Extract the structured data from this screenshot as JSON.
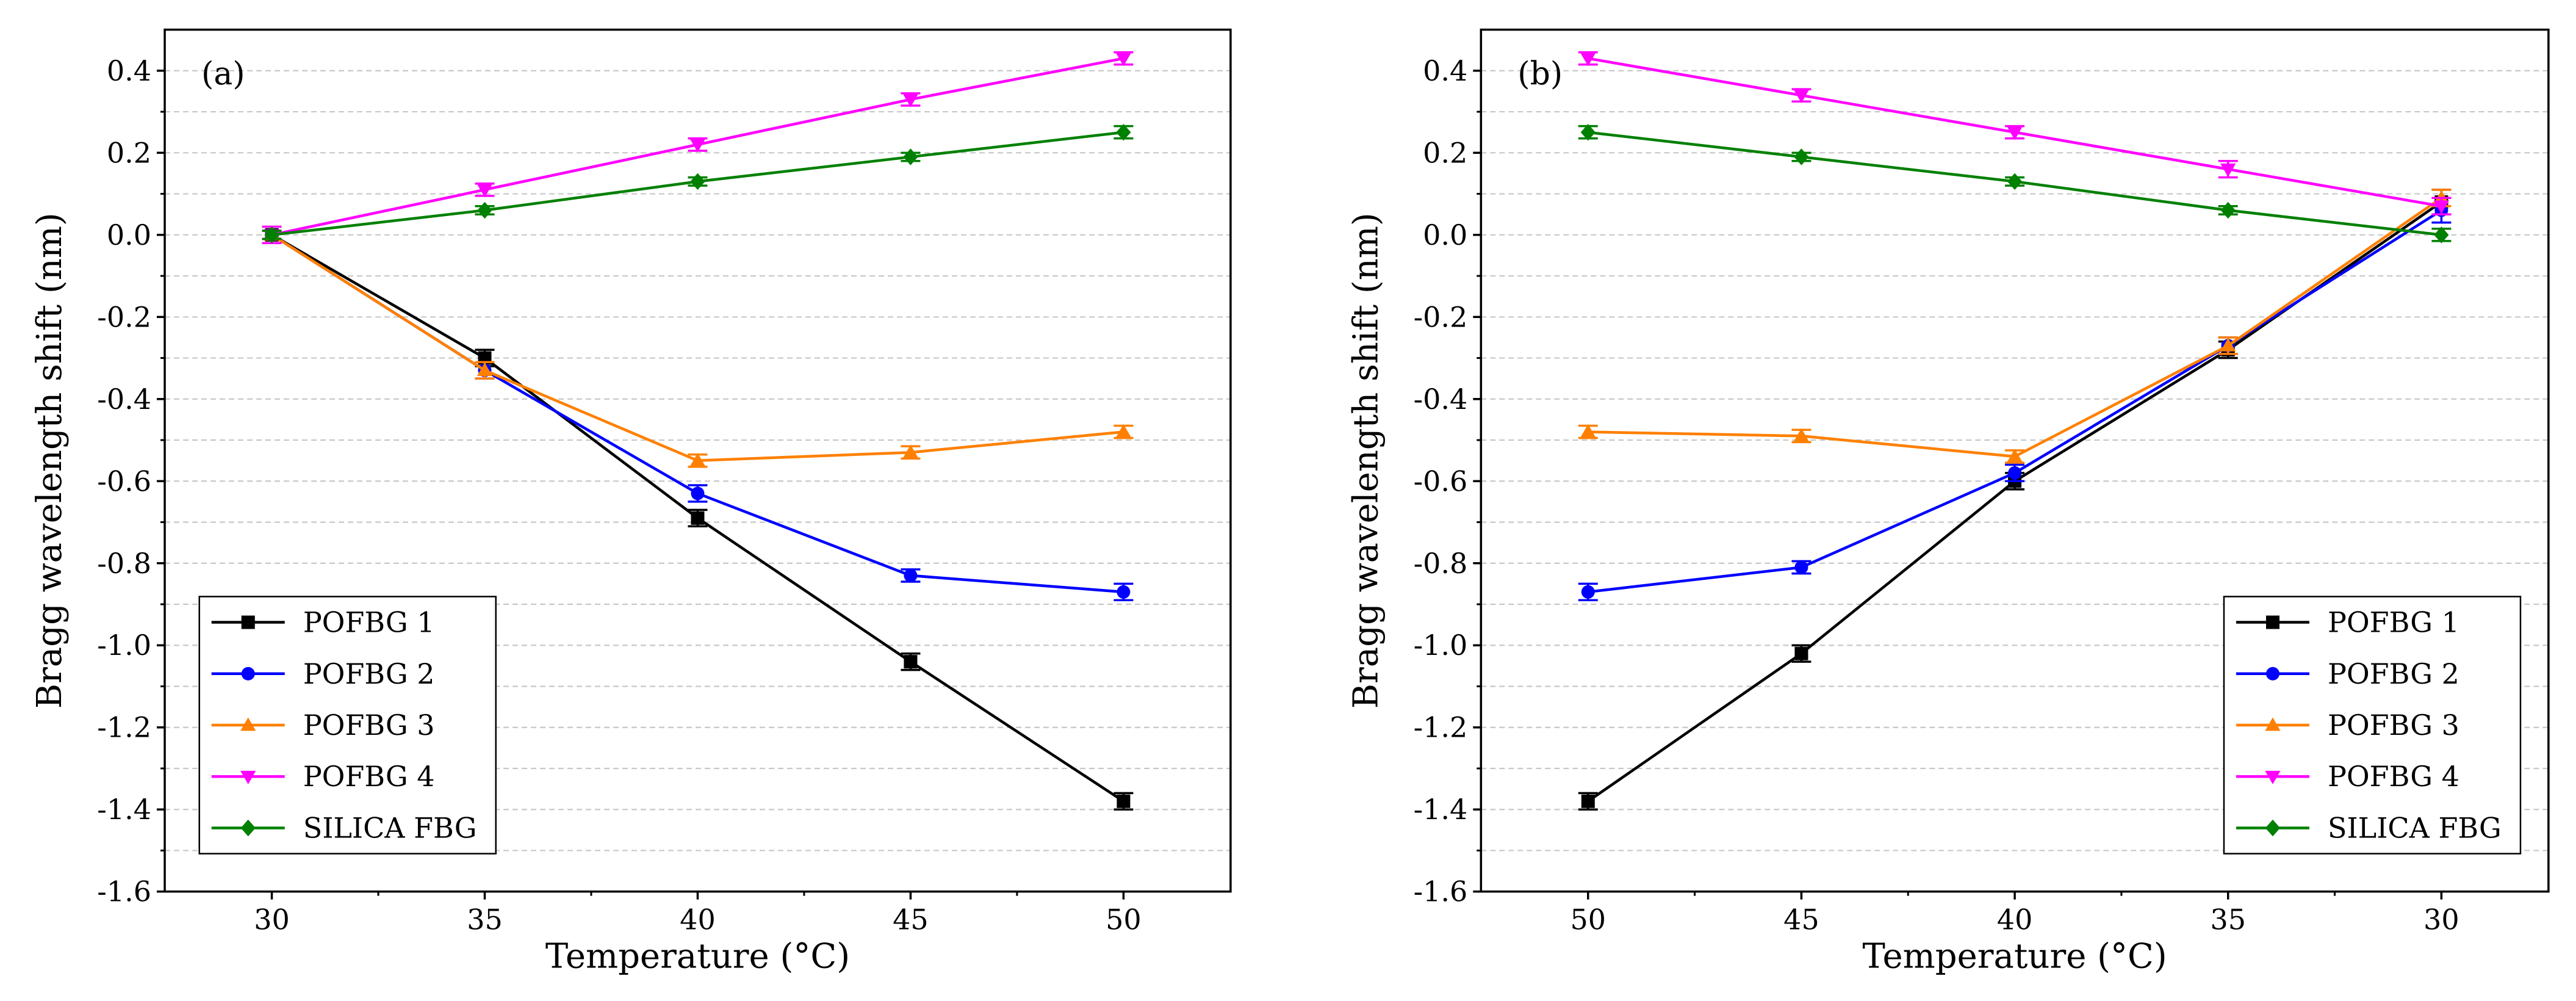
{
  "chart_data": [
    {
      "type": "line",
      "panel_label": "(a)",
      "xlabel": "Temperature (°C)",
      "ylabel": "Bragg wavelength shift (nm)",
      "categories": [
        "30",
        "35",
        "40",
        "45",
        "50"
      ],
      "ylim": [
        -1.6,
        0.5
      ],
      "yticks": [
        "0.4",
        "0.2",
        "0.0",
        "-0.2",
        "-0.4",
        "-0.6",
        "-0.8",
        "-1.0",
        "-1.2",
        "-1.4",
        "-1.6"
      ],
      "grid": true,
      "legend_position": "bottom-left",
      "series": [
        {
          "name": "POFBG 1",
          "color": "#000000",
          "marker": "square",
          "values": [
            0.0,
            -0.3,
            -0.69,
            -1.04,
            -1.38
          ],
          "errors": [
            0.01,
            0.02,
            0.02,
            0.02,
            0.02
          ]
        },
        {
          "name": "POFBG 2",
          "color": "#0000ff",
          "marker": "circle",
          "values": [
            0.0,
            -0.33,
            -0.63,
            -0.83,
            -0.87
          ],
          "errors": [
            0.01,
            0.02,
            0.02,
            0.015,
            0.02
          ]
        },
        {
          "name": "POFBG 3",
          "color": "#ff8000",
          "marker": "triangle-up",
          "values": [
            0.0,
            -0.33,
            -0.55,
            -0.53,
            -0.48
          ],
          "errors": [
            0.01,
            0.02,
            0.015,
            0.015,
            0.015
          ]
        },
        {
          "name": "POFBG 4",
          "color": "#ff00ff",
          "marker": "triangle-down",
          "values": [
            0.0,
            0.11,
            0.22,
            0.33,
            0.43
          ],
          "errors": [
            0.02,
            0.015,
            0.015,
            0.015,
            0.015
          ]
        },
        {
          "name": "SILICA FBG",
          "color": "#008000",
          "marker": "diamond",
          "values": [
            0.0,
            0.06,
            0.13,
            0.19,
            0.25
          ],
          "errors": [
            0.01,
            0.01,
            0.01,
            0.01,
            0.015
          ]
        }
      ]
    },
    {
      "type": "line",
      "panel_label": "(b)",
      "xlabel": "Temperature (°C)",
      "ylabel": "Bragg wavelength shift (nm)",
      "categories": [
        "50",
        "45",
        "40",
        "35",
        "30"
      ],
      "ylim": [
        -1.6,
        0.5
      ],
      "yticks": [
        "0.4",
        "0.2",
        "0.0",
        "-0.2",
        "-0.4",
        "-0.6",
        "-0.8",
        "-1.0",
        "-1.2",
        "-1.4",
        "-1.6"
      ],
      "grid": true,
      "legend_position": "bottom-right",
      "series": [
        {
          "name": "POFBG 1",
          "color": "#000000",
          "marker": "square",
          "values": [
            -1.38,
            -1.02,
            -0.6,
            -0.28,
            0.08
          ],
          "errors": [
            0.02,
            0.02,
            0.02,
            0.02,
            0.03
          ]
        },
        {
          "name": "POFBG 2",
          "color": "#0000ff",
          "marker": "circle",
          "values": [
            -0.87,
            -0.81,
            -0.58,
            -0.27,
            0.06
          ],
          "errors": [
            0.02,
            0.015,
            0.02,
            0.02,
            0.03
          ]
        },
        {
          "name": "POFBG 3",
          "color": "#ff8000",
          "marker": "triangle-up",
          "values": [
            -0.48,
            -0.49,
            -0.54,
            -0.27,
            0.09
          ],
          "errors": [
            0.015,
            0.015,
            0.015,
            0.02,
            0.02
          ]
        },
        {
          "name": "POFBG 4",
          "color": "#ff00ff",
          "marker": "triangle-down",
          "values": [
            0.43,
            0.34,
            0.25,
            0.16,
            0.07
          ],
          "errors": [
            0.015,
            0.015,
            0.015,
            0.02,
            0.02
          ]
        },
        {
          "name": "SILICA FBG",
          "color": "#008000",
          "marker": "diamond",
          "values": [
            0.25,
            0.19,
            0.13,
            0.06,
            0.0
          ],
          "errors": [
            0.015,
            0.01,
            0.01,
            0.01,
            0.015
          ]
        }
      ]
    }
  ]
}
